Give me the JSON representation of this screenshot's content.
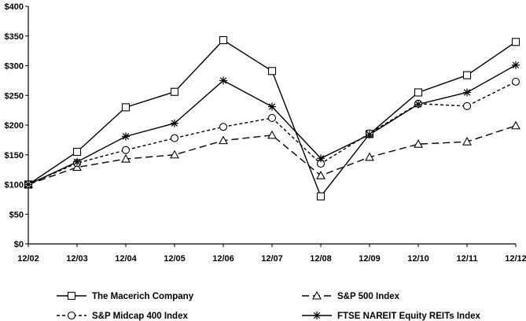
{
  "chart_data": {
    "type": "line",
    "title": "",
    "xlabel": "",
    "ylabel": "",
    "categories": [
      "12/02",
      "12/03",
      "12/04",
      "12/05",
      "12/06",
      "12/07",
      "12/08",
      "12/09",
      "12/10",
      "12/11",
      "12/12"
    ],
    "ylim": [
      0,
      400
    ],
    "yticks": [
      0,
      50,
      100,
      150,
      200,
      250,
      300,
      350,
      400
    ],
    "ytick_labels": [
      "$0",
      "$50",
      "$100",
      "$150",
      "$200",
      "$250",
      "$300",
      "$350",
      "$400"
    ],
    "grid": false,
    "legend_position": "bottom",
    "series": [
      {
        "name": "The Macerich Company",
        "marker": "square",
        "dash": "solid",
        "color": "#000000",
        "values": [
          100,
          155,
          230,
          256,
          343,
          291,
          80,
          185,
          255,
          284,
          340
        ]
      },
      {
        "name": "S&P 500 Index",
        "marker": "triangle",
        "dash": "long-dash",
        "color": "#000000",
        "values": [
          100,
          129,
          143,
          150,
          174,
          183,
          115,
          146,
          168,
          172,
          199
        ]
      },
      {
        "name": "S&P Midcap 400 Index",
        "marker": "circle",
        "dash": "short-dash",
        "color": "#000000",
        "values": [
          100,
          136,
          158,
          178,
          197,
          212,
          135,
          186,
          236,
          232,
          273
        ]
      },
      {
        "name": "FTSE NAREIT Equity REITs Index",
        "marker": "asterisk",
        "dash": "solid",
        "color": "#000000",
        "values": [
          100,
          138,
          181,
          203,
          275,
          231,
          144,
          184,
          235,
          255,
          301
        ]
      }
    ]
  }
}
